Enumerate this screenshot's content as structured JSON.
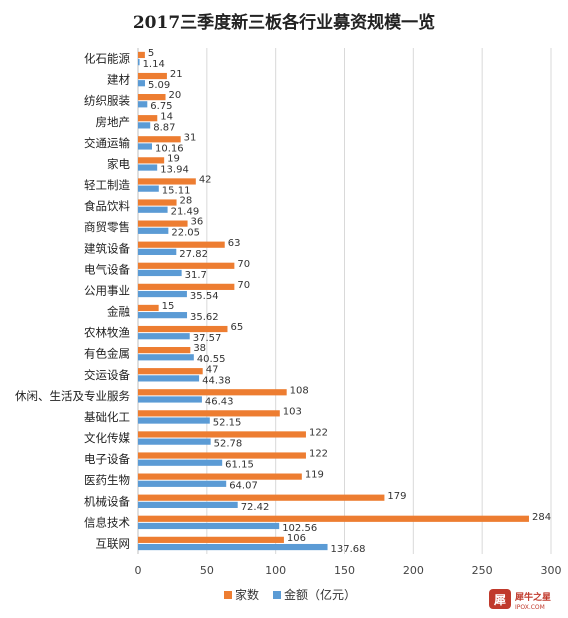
{
  "chart_data": {
    "type": "bar",
    "orientation": "horizontal",
    "title": "2017三季度新三板各行业募资规模一览",
    "categories": [
      "化石能源",
      "建材",
      "纺织服装",
      "房地产",
      "交通运输",
      "家电",
      "轻工制造",
      "食品饮料",
      "商贸零售",
      "建筑设备",
      "电气设备",
      "公用事业",
      "金融",
      "农林牧渔",
      "有色金属",
      "交运设备",
      "休闲、生活及专业服务",
      "基础化工",
      "文化传媒",
      "电子设备",
      "医药生物",
      "机械设备",
      "信息技术",
      "互联网"
    ],
    "series": [
      {
        "name": "家数",
        "color": "#ed7d31",
        "values": [
          5,
          21,
          20,
          14,
          31,
          19,
          42,
          28,
          36,
          63,
          70,
          70,
          15,
          65,
          38,
          47,
          108,
          103,
          122,
          122,
          119,
          179,
          284,
          106
        ],
        "labels": [
          "5",
          "21",
          "20",
          "14",
          "31",
          "19",
          "42",
          "28",
          "36",
          "63",
          "70",
          "70",
          "15",
          "65",
          "38",
          "47",
          "108",
          "103",
          "122",
          "122",
          "119",
          "179",
          "284",
          "106"
        ]
      },
      {
        "name": "金额（亿元）",
        "color": "#5b9bd5",
        "values": [
          1.14,
          5.09,
          6.75,
          8.87,
          10.16,
          13.94,
          15.11,
          21.49,
          22.05,
          27.82,
          31.7,
          35.54,
          35.62,
          37.57,
          40.55,
          44.38,
          46.43,
          52.15,
          52.78,
          61.15,
          64.07,
          72.42,
          102.56,
          137.68
        ],
        "labels": [
          "1.14",
          "5.09",
          "6.75",
          "8.87",
          "10.16",
          "13.94",
          "15.11",
          "21.49",
          "22.05",
          "27.82",
          "31.7",
          "35.54",
          "35.62",
          "37.57",
          "40.55",
          "44.38",
          "46.43",
          "52.15",
          "52.78",
          "61.15",
          "64.07",
          "72.42",
          "102.56",
          "137.68"
        ]
      }
    ],
    "xlim": [
      0,
      300
    ],
    "xticks": [
      "0",
      "50",
      "100",
      "150",
      "200",
      "250",
      "300"
    ],
    "grid": true,
    "legend_position": "bottom"
  },
  "watermark": {
    "name": "犀牛之星",
    "sub": "IPOX.COM"
  }
}
